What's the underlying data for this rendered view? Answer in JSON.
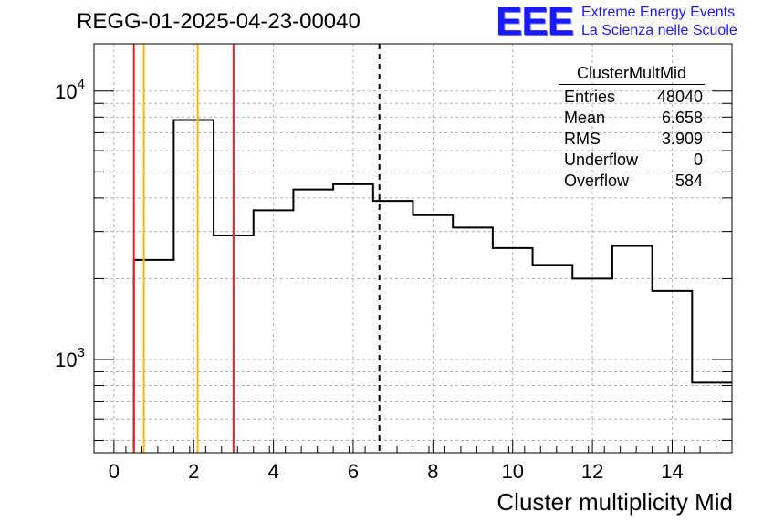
{
  "title": "REGG-01-2025-04-23-00040",
  "logo": {
    "mark": "EEE",
    "line1": "Extreme Energy Events",
    "line2": "La Scienza nelle Scuole",
    "color": "#1a1aff"
  },
  "stats_box": {
    "name": "ClusterMultMid",
    "rows": [
      {
        "label": "Entries",
        "value": "48040"
      },
      {
        "label": "Mean",
        "value": "6.658"
      },
      {
        "label": "RMS",
        "value": "3.909"
      },
      {
        "label": "Underflow",
        "value": "0"
      },
      {
        "label": "Overflow",
        "value": "584"
      }
    ]
  },
  "chart_data": {
    "type": "histogram",
    "title": "REGG-01-2025-04-23-00040",
    "xlabel": "Cluster multiplicity Mid",
    "ylabel": "",
    "yscale": "log",
    "xlim": [
      -0.5,
      15.5
    ],
    "ylim": [
      450,
      15000
    ],
    "x_ticks": [
      0,
      2,
      4,
      6,
      8,
      10,
      12,
      14
    ],
    "x_tick_labels": [
      "0",
      "2",
      "4",
      "6",
      "8",
      "10",
      "12",
      "14"
    ],
    "y_ticks": [
      1000,
      10000
    ],
    "y_tick_labels": [
      {
        "base": "10",
        "exp": "3"
      },
      {
        "base": "10",
        "exp": "4"
      }
    ],
    "grid": true,
    "bin_edges": [
      -0.5,
      0.5,
      1.5,
      2.5,
      3.5,
      4.5,
      5.5,
      6.5,
      7.5,
      8.5,
      9.5,
      10.5,
      11.5,
      12.5,
      13.5,
      14.5,
      15.5
    ],
    "values": [
      0,
      2350,
      7800,
      2900,
      3600,
      4300,
      4500,
      3900,
      3450,
      3100,
      2600,
      2250,
      2000,
      2650,
      1800,
      820
    ],
    "vertical_lines": [
      {
        "x": 0.5,
        "color": "#e8231f",
        "style": "solid"
      },
      {
        "x": 0.75,
        "color": "#f5b800",
        "style": "solid"
      },
      {
        "x": 2.1,
        "color": "#f5b800",
        "style": "solid"
      },
      {
        "x": 3.0,
        "color": "#e8231f",
        "style": "solid"
      },
      {
        "x": 6.658,
        "color": "#000000",
        "style": "dashed"
      }
    ],
    "line_color": "#000000"
  }
}
